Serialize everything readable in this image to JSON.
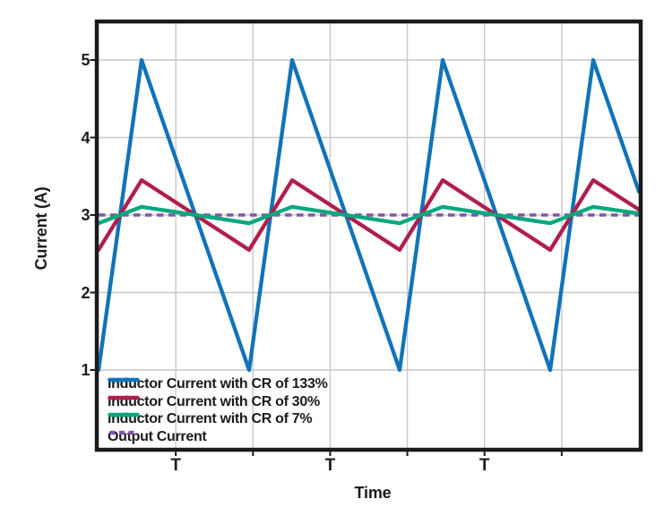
{
  "figure": {
    "background": "#ffffff",
    "ink_color": "#1a1a1a",
    "grid_color": "#c8c8cd",
    "text_color": "#1c1c1c"
  },
  "chart_data": {
    "type": "line",
    "title": "",
    "xlabel": "Time",
    "ylabel": "Current (A)",
    "x_unit": "switching periods (T)",
    "y_unit": "A",
    "xlim": [
      0,
      3.59
    ],
    "ylim": [
      0,
      5.52
    ],
    "grid": true,
    "x_divisions": 7,
    "legend_position": "inside-bottom-left",
    "y_ticks": [
      5,
      4,
      3,
      2,
      1
    ],
    "x_ticks": [
      {
        "label": "T",
        "grid_index": 1
      },
      {
        "label": "T",
        "grid_index": 3
      },
      {
        "label": "T",
        "grid_index": 5
      }
    ],
    "output_current_A": 3,
    "series": [
      {
        "name": "Inductor Current with CR of 133%",
        "color": "#1173b9",
        "style": "solid",
        "average_A": 3,
        "min_A": 1,
        "max_A": 5,
        "ripple_pct": 133,
        "points": [
          [
            0,
            1
          ],
          [
            0.286,
            5
          ],
          [
            1,
            1
          ],
          [
            1.286,
            5
          ],
          [
            2,
            1
          ],
          [
            2.286,
            5
          ],
          [
            3,
            1
          ],
          [
            3.286,
            5
          ],
          [
            3.59,
            3.3
          ]
        ]
      },
      {
        "name": "Inductor Current with CR of 30%",
        "color": "#b01e4c",
        "style": "solid",
        "average_A": 3,
        "min_A": 2.55,
        "max_A": 3.45,
        "ripple_pct": 30,
        "points": [
          [
            0,
            2.55
          ],
          [
            0.286,
            3.45
          ],
          [
            1,
            2.55
          ],
          [
            1.286,
            3.45
          ],
          [
            2,
            2.55
          ],
          [
            2.286,
            3.45
          ],
          [
            3,
            2.55
          ],
          [
            3.286,
            3.45
          ],
          [
            3.59,
            3.07
          ]
        ]
      },
      {
        "name": "Inductor Current with CR of 7%",
        "color": "#00a87d",
        "style": "solid",
        "average_A": 3,
        "min_A": 2.895,
        "max_A": 3.105,
        "ripple_pct": 7,
        "points": [
          [
            0,
            2.895
          ],
          [
            0.286,
            3.105
          ],
          [
            1,
            2.895
          ],
          [
            1.286,
            3.105
          ],
          [
            2,
            2.895
          ],
          [
            2.286,
            3.105
          ],
          [
            3,
            2.895
          ],
          [
            3.286,
            3.105
          ],
          [
            3.59,
            3.02
          ]
        ]
      },
      {
        "name": "Output Current",
        "color": "#8355a6",
        "style": "dashed",
        "average_A": 3,
        "points": [
          [
            0,
            3
          ],
          [
            3.59,
            3
          ]
        ]
      }
    ]
  }
}
